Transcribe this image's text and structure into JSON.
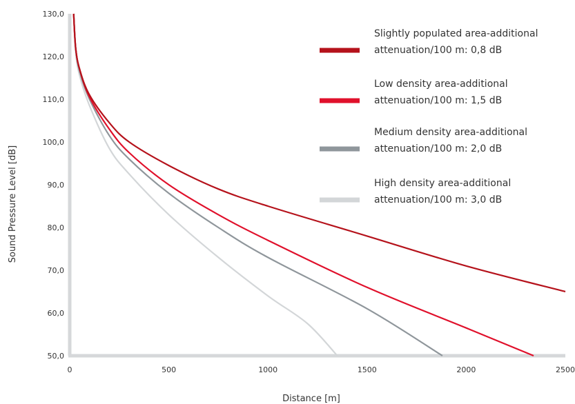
{
  "chart_data": {
    "type": "line",
    "title": "",
    "xlabel": "Distance [m]",
    "ylabel": "Sound Pressure Level [dB]",
    "xlim": [
      0,
      2500
    ],
    "ylim": [
      50,
      130
    ],
    "x_ticks": [
      "0",
      "500",
      "1000",
      "1500",
      "2000",
      "2500"
    ],
    "y_ticks": [
      "50,0",
      "60,0",
      "70,0",
      "80,0",
      "90,0",
      "100,0",
      "110,0",
      "120,0",
      "130,0"
    ],
    "grid": false,
    "legend_position": "top-right",
    "series": [
      {
        "name_lines": [
          "Slightly populated area-additional",
          "attenuation/100 m: 0,8 dB"
        ],
        "color": "#b5121b",
        "points": [
          [
            20,
            130
          ],
          [
            30,
            122
          ],
          [
            50,
            117
          ],
          [
            100,
            111
          ],
          [
            200,
            104.5
          ],
          [
            300,
            100
          ],
          [
            500,
            94.5
          ],
          [
            750,
            89
          ],
          [
            1000,
            85
          ],
          [
            1500,
            78
          ],
          [
            2000,
            71
          ],
          [
            2500,
            65
          ]
        ]
      },
      {
        "name_lines": [
          "Low density area-additional",
          "attenuation/100 m: 1,5 dB"
        ],
        "color": "#e0102b",
        "points": [
          [
            20,
            130
          ],
          [
            30,
            122
          ],
          [
            50,
            117
          ],
          [
            100,
            110.5
          ],
          [
            200,
            103
          ],
          [
            300,
            97.5
          ],
          [
            500,
            90
          ],
          [
            750,
            83
          ],
          [
            1000,
            77
          ],
          [
            1500,
            66
          ],
          [
            2000,
            56.5
          ],
          [
            2340,
            50
          ]
        ]
      },
      {
        "name_lines": [
          "Medium density area-additional",
          "attenuation/100 m: 2,0 dB"
        ],
        "color": "#8f969b",
        "points": [
          [
            20,
            130
          ],
          [
            30,
            122
          ],
          [
            50,
            116.5
          ],
          [
            100,
            110
          ],
          [
            200,
            101.5
          ],
          [
            300,
            96
          ],
          [
            500,
            88
          ],
          [
            750,
            80
          ],
          [
            1000,
            73
          ],
          [
            1500,
            61
          ],
          [
            1880,
            50
          ]
        ]
      },
      {
        "name_lines": [
          "High density area-additional",
          "attenuation/100 m: 3,0 dB"
        ],
        "color": "#d3d6d8",
        "points": [
          [
            20,
            130
          ],
          [
            30,
            121
          ],
          [
            50,
            115.5
          ],
          [
            100,
            108.5
          ],
          [
            200,
            98.5
          ],
          [
            300,
            92.5
          ],
          [
            500,
            83
          ],
          [
            750,
            73
          ],
          [
            1000,
            64
          ],
          [
            1200,
            57.5
          ],
          [
            1350,
            50
          ]
        ]
      }
    ]
  }
}
